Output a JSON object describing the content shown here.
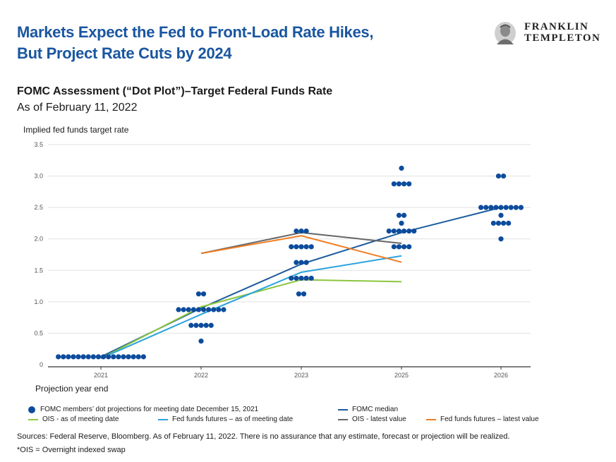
{
  "header": {
    "title_line1": "Markets Expect the Fed to Front-Load Rate Hikes,",
    "title_line2": "But Project Rate Cuts by 2024",
    "logo_line1": "FRANKLIN",
    "logo_line2": "TEMPLETON"
  },
  "subtitle": "FOMC Assessment (“Dot Plot”)–Target Federal Funds Rate",
  "as_of": "As of February 11, 2022",
  "sources": "Sources: Federal Reserve, Bloomberg. As of February 11, 2022. There is no assurance that any estimate, forecast or projection will be realized.",
  "footnote": "*OIS = Overnight indexed swap",
  "colors": {
    "title": "#1a56a0",
    "dots": "#0d4c9c",
    "fomc_median": "#1b5a9c",
    "ois_meeting": "#8cc63e",
    "ff_futures_meeting": "#2aa3de",
    "ois_latest": "#666666",
    "ff_futures_latest": "#ef7d22"
  },
  "chart_data": {
    "type": "scatter",
    "ylabel": "Implied fed funds target rate",
    "xlabel": "Projection year end",
    "categories": [
      "2021",
      "2022",
      "2023",
      "2025",
      "2026"
    ],
    "ylim": [
      0,
      3.5
    ],
    "yticks": [
      "0",
      "0.5",
      "1.0",
      "1.5",
      "2.0",
      "2.5",
      "3.0",
      "3.5"
    ],
    "grid": true,
    "dots": {
      "name": "FOMC members’ dot projections for meeting date December 15, 2021",
      "points": [
        {
          "x": "2021",
          "y": 0.125,
          "count": 18
        },
        {
          "x": "2022",
          "y": 1.125,
          "count": 2
        },
        {
          "x": "2022",
          "y": 0.875,
          "count": 10
        },
        {
          "x": "2022",
          "y": 0.625,
          "count": 5
        },
        {
          "x": "2022",
          "y": 0.375,
          "count": 1
        },
        {
          "x": "2023",
          "y": 2.125,
          "count": 3
        },
        {
          "x": "2023",
          "y": 1.875,
          "count": 5
        },
        {
          "x": "2023",
          "y": 1.625,
          "count": 3
        },
        {
          "x": "2023",
          "y": 1.375,
          "count": 5
        },
        {
          "x": "2023",
          "y": 1.125,
          "count": 2
        },
        {
          "x": "2025",
          "y": 3.125,
          "count": 1
        },
        {
          "x": "2025",
          "y": 2.875,
          "count": 4
        },
        {
          "x": "2025",
          "y": 2.375,
          "count": 2
        },
        {
          "x": "2025",
          "y": 2.25,
          "count": 1
        },
        {
          "x": "2025",
          "y": 2.125,
          "count": 6
        },
        {
          "x": "2025",
          "y": 1.875,
          "count": 4
        },
        {
          "x": "2026",
          "y": 3.0,
          "count": 2
        },
        {
          "x": "2026",
          "y": 2.5,
          "count": 9
        },
        {
          "x": "2026",
          "y": 2.375,
          "count": 1
        },
        {
          "x": "2026",
          "y": 2.25,
          "count": 4
        },
        {
          "x": "2026",
          "y": 2.0,
          "count": 1
        }
      ]
    },
    "series": [
      {
        "name": "FOMC median",
        "color": "#1b5a9c",
        "x": [
          "2021",
          "2022",
          "2023",
          "2025",
          "2026"
        ],
        "values": [
          0.125,
          0.9,
          1.6,
          2.1,
          2.5
        ]
      },
      {
        "name": "OIS  - as of meeting date",
        "color": "#8cc63e",
        "x": [
          "2021",
          "2022",
          "2023",
          "2025"
        ],
        "values": [
          0.1,
          0.92,
          1.35,
          1.32
        ]
      },
      {
        "name": "Fed funds futures – as of meeting date",
        "color": "#2aa3de",
        "x": [
          "2021",
          "2022",
          "2023",
          "2025"
        ],
        "values": [
          0.1,
          0.8,
          1.47,
          1.73
        ]
      },
      {
        "name": "OIS  - latest value",
        "color": "#666666",
        "x": [
          "2022",
          "2023",
          "2025"
        ],
        "values": [
          1.77,
          2.1,
          1.93
        ]
      },
      {
        "name": "Fed funds futures – latest value",
        "color": "#ef7d22",
        "x": [
          "2022",
          "2023",
          "2025"
        ],
        "values": [
          1.77,
          2.05,
          1.63
        ]
      }
    ]
  }
}
